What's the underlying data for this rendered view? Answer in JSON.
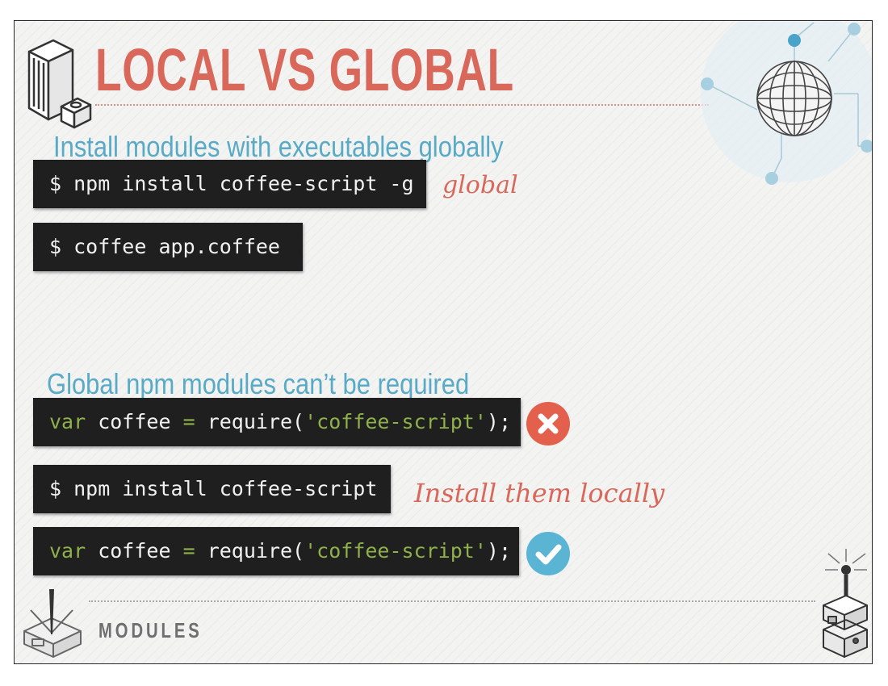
{
  "slide": {
    "title": "LOCAL VS GLOBAL",
    "footer_label": "MODULES"
  },
  "section1": {
    "heading": "Install modules with executables globally",
    "code_install_global": "$ npm install coffee-script -g",
    "note_global": "global",
    "code_run": "$ coffee app.coffee"
  },
  "section2": {
    "heading": "Global npm modules can’t be required",
    "code_require_fail": {
      "keyword": "var",
      "name": " coffee ",
      "op": "=",
      "call": " require(",
      "string": "'coffee-script'",
      "end": ");"
    },
    "code_install_local": "$ npm install coffee-script",
    "note_local": "Install them locally",
    "code_require_ok": {
      "keyword": "var",
      "name": " coffee ",
      "op": "=",
      "call": " require(",
      "string": "'coffee-script'",
      "end": ");"
    }
  },
  "colors": {
    "title": "#d9685a",
    "heading": "#58aac6",
    "code_bg": "#1f1f1f",
    "code_keyword": "#8fb04a",
    "error": "#e2604c",
    "success": "#5ab4d3"
  },
  "icons": {
    "top_left": "server-tower-icon",
    "top_right": "globe-network-icon",
    "error_badge": "close-icon",
    "success_badge": "check-icon",
    "bottom_left": "modules-box-icon",
    "bottom_right": "robot-tower-icon"
  }
}
